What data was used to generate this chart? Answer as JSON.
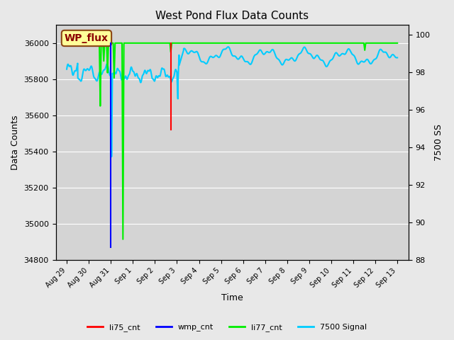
{
  "title": "West Pond Flux Data Counts",
  "xlabel": "Time",
  "ylabel": "Data Counts",
  "ylabel_right": "7500 SS",
  "ylim": [
    34800,
    36100
  ],
  "ylim_right": [
    88,
    100.5
  ],
  "yticks_left": [
    34800,
    35000,
    35200,
    35400,
    35600,
    35800,
    36000
  ],
  "yticks_right": [
    88,
    90,
    92,
    94,
    96,
    98,
    100
  ],
  "background_color": "#e8e8e8",
  "plot_bg_color": "#d4d4d4",
  "annotation_box": {
    "text": "WP_flux",
    "bgcolor": "#ffff99",
    "edgecolor": "#8B4513",
    "textcolor": "#8B0000",
    "fontsize": 10,
    "fontweight": "bold"
  },
  "legend": {
    "entries": [
      "li75_cnt",
      "wmp_cnt",
      "li77_cnt",
      "7500 Signal"
    ],
    "colors": [
      "#ff0000",
      "#0000ff",
      "#00ee00",
      "#00ccff"
    ],
    "ncol": 4
  },
  "li77_color": "#00ee00",
  "wmp_color": "#0000ff",
  "li75_color": "#ff0000",
  "signal_color": "#00ccff",
  "linewidth": 1.5,
  "signal_linewidth": 1.5,
  "xtick_positions": [
    0,
    1,
    2,
    3,
    4,
    5,
    6,
    7,
    8,
    9,
    10,
    11,
    12,
    13,
    14,
    15
  ],
  "xtick_labels": [
    "Aug 29",
    "Aug 30",
    "Aug 31",
    "Sep 1",
    "Sep 2",
    "Sep 3",
    "Sep 4",
    "Sep 5",
    "Sep 6",
    "Sep 7",
    "Sep 8",
    "Sep 9",
    "Sep 10",
    "Sep 11",
    "Sep 12",
    "Sep 13"
  ],
  "xlim": [
    -0.5,
    15.5
  ]
}
